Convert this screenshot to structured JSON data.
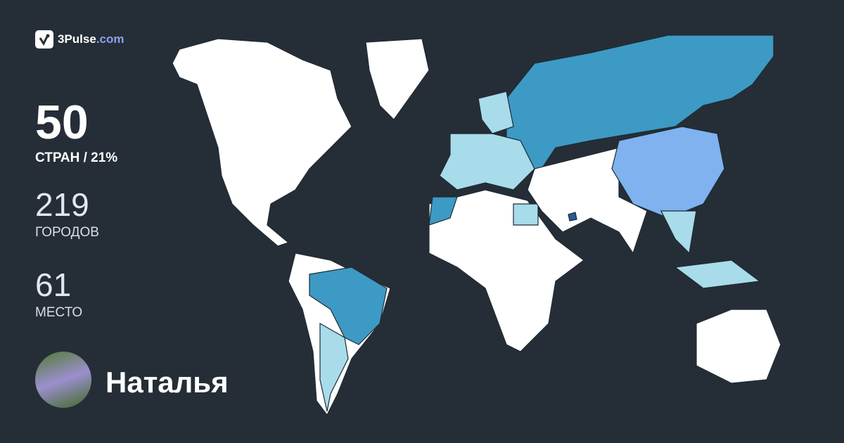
{
  "logo": {
    "brand": "3Pulse",
    "domain": ".com",
    "icon": "pulse-check-icon"
  },
  "stats": {
    "countries": {
      "value": "50",
      "label": "СТРАН / 21%"
    },
    "cities": {
      "value": "219",
      "label": "ГОРОДОВ"
    },
    "rank": {
      "value": "61",
      "label": "МЕСТО"
    }
  },
  "user": {
    "name": "Наталья"
  },
  "colors": {
    "background": "#252e36",
    "unvisited": "#ffffff",
    "visited_main": "#3d9ac4",
    "visited_light": "#a8dcea",
    "visited_mid": "#7fb2ee",
    "visited_dark": "#2a5a9a",
    "brand_accent": "#8aa0f0"
  }
}
